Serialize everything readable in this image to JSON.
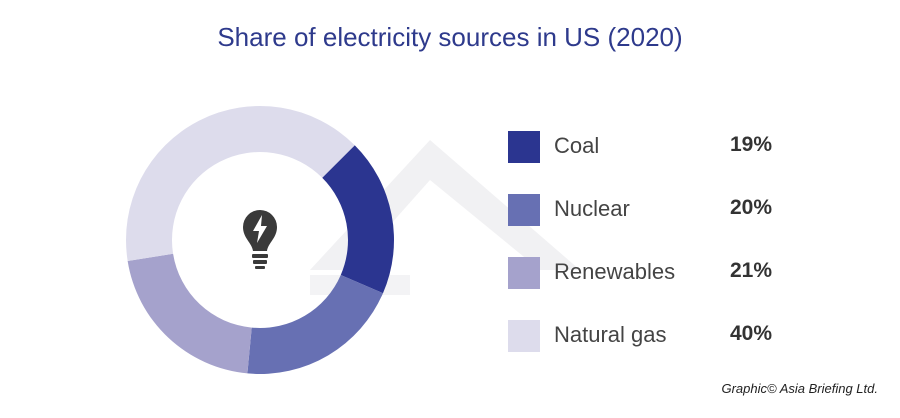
{
  "chart_data": {
    "type": "pie",
    "title": "Share of electricity sources in US (2020)",
    "categories": [
      "Coal",
      "Nuclear",
      "Renewables",
      "Natural gas"
    ],
    "values": [
      19,
      20,
      21,
      40
    ],
    "value_labels": [
      "19%",
      "20%",
      "21%",
      "40%"
    ],
    "colors": [
      "#2b3590",
      "#6770b3",
      "#a5a2cc",
      "#dddcec"
    ],
    "legend_position": "right",
    "center_icon": "lightbulb-icon",
    "credit": "Graphic© Asia Briefing Ltd."
  }
}
